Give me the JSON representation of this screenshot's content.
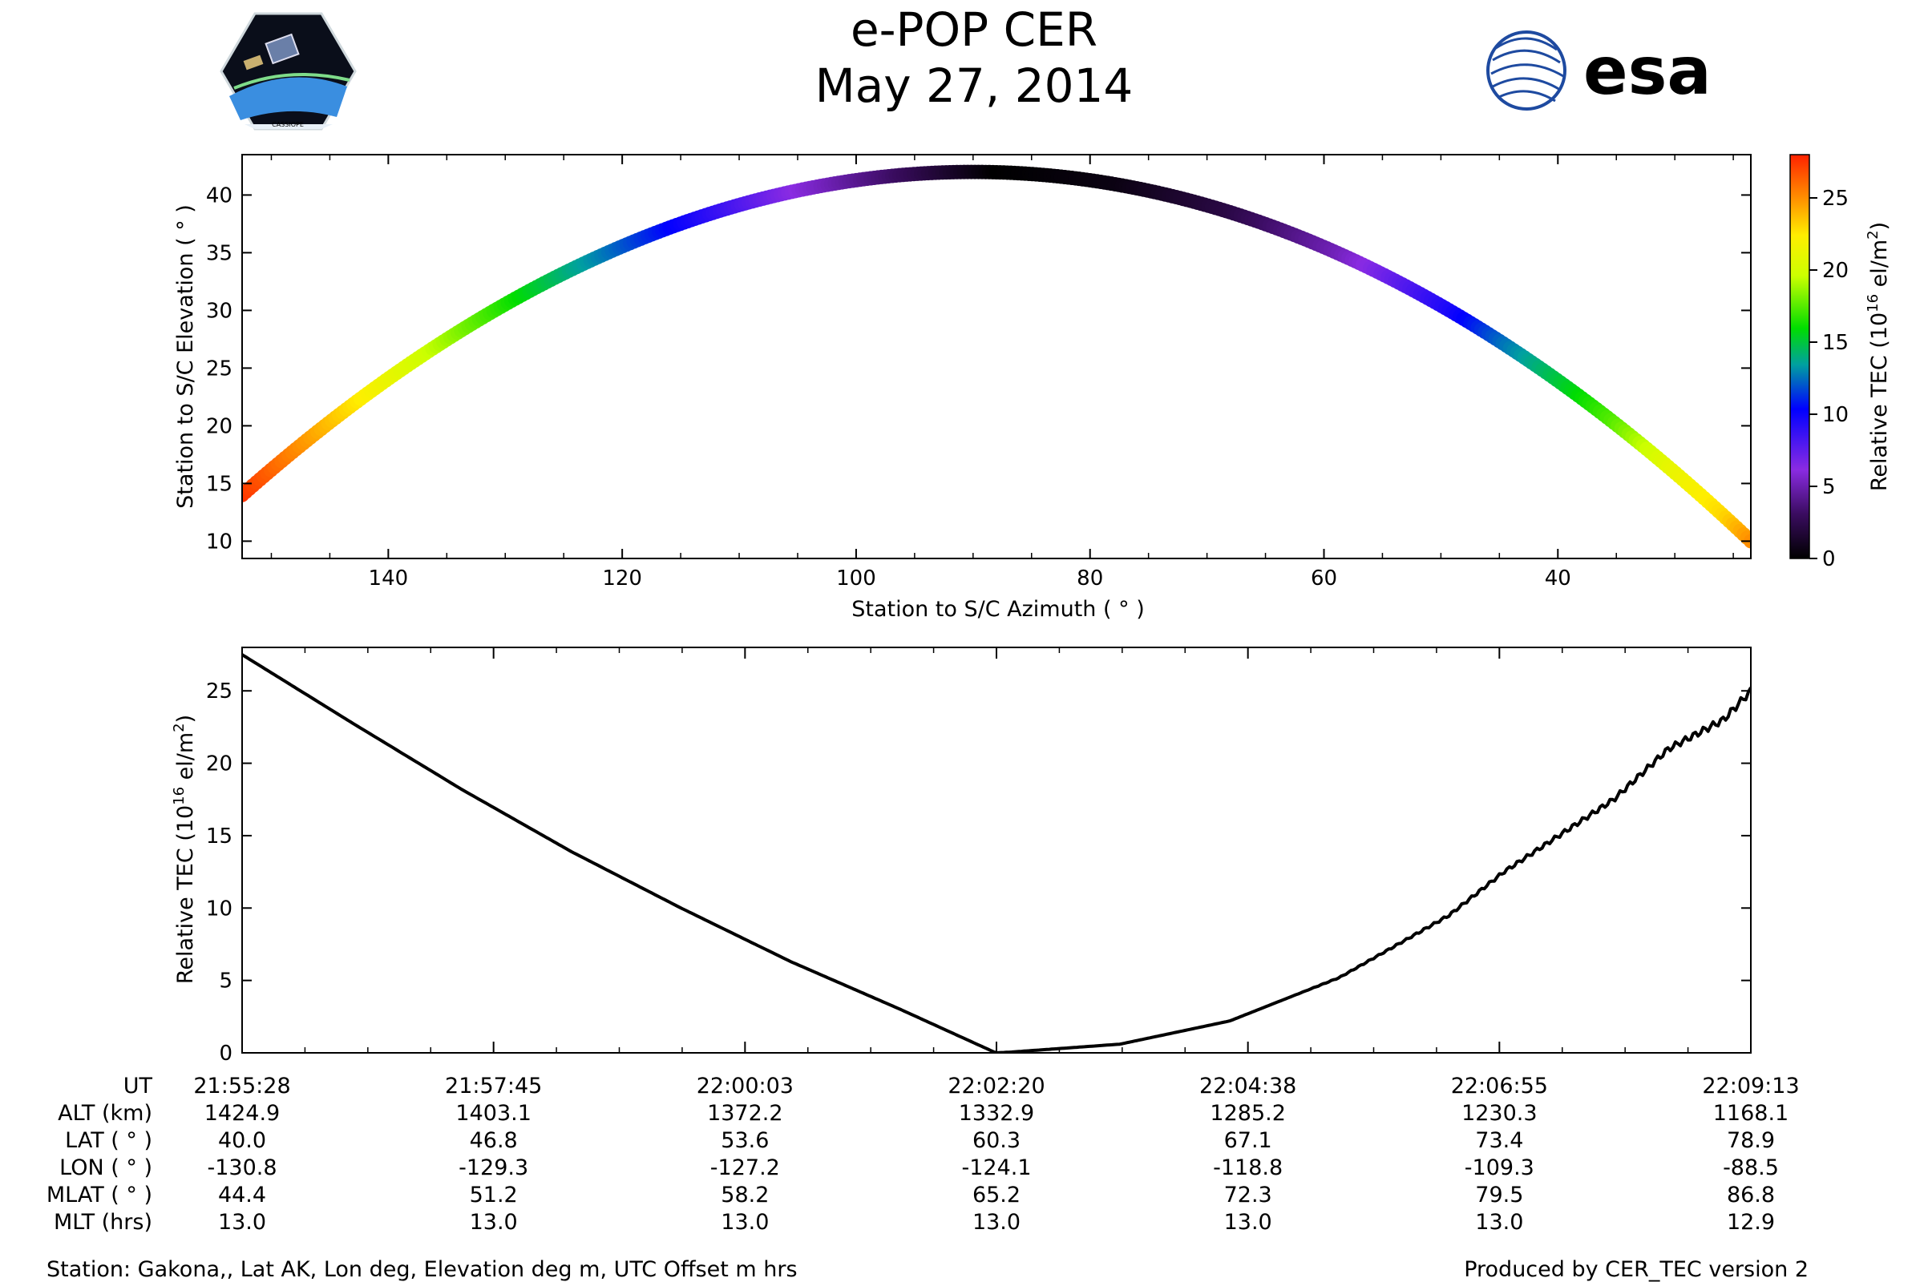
{
  "header": {
    "title": "e-POP CER",
    "date": "May 27, 2014",
    "left_logo_text": "CASSIOPE",
    "right_logo_text": "esa"
  },
  "chart_data": [
    {
      "type": "scatter",
      "name": "azimuth-elevation track",
      "xlabel": "Station to S/C Azimuth ( ° )",
      "ylabel": "Station to S/C Elevation ( ° )",
      "xlim": [
        152.5,
        23.5
      ],
      "ylim": [
        8.5,
        43.5
      ],
      "xticks": [
        140,
        120,
        100,
        80,
        60,
        40
      ],
      "yticks": [
        10,
        15,
        20,
        25,
        30,
        35,
        40
      ],
      "track": {
        "azimuth_start": 152.5,
        "azimuth_peak": 90,
        "azimuth_end": 23.5,
        "elevation_start": 14,
        "elevation_peak": 42,
        "elevation_end": 10
      },
      "colorbar": {
        "label_main": "Relative TEC (10",
        "label_exp": "16",
        "label_unit": " el/m",
        "label_sq": "2",
        "label_close": ")",
        "range": [
          0,
          28
        ],
        "ticks": [
          0,
          5,
          10,
          15,
          20,
          25
        ],
        "colormap": [
          "#000000",
          "#3a0c60",
          "#8a2be2",
          "#0000ff",
          "#00a0a0",
          "#00dd00",
          "#ccff00",
          "#ffee00",
          "#ff8800",
          "#ff2200"
        ]
      }
    },
    {
      "type": "line",
      "name": "relative TEC vs time",
      "xlabel": "UT",
      "ylabel_main": "Relative TEC (10",
      "ylabel_exp": "16",
      "ylabel_unit": " el/m",
      "ylabel_sq": "2",
      "ylabel_close": ")",
      "ylim": [
        0,
        28
      ],
      "yticks": [
        0,
        5,
        10,
        15,
        20,
        25
      ],
      "x_minutes": [
        0,
        1,
        2,
        3,
        4,
        5,
        6,
        6.87,
        7,
        8,
        9,
        10,
        11,
        11.5,
        12,
        12.5,
        13,
        13.5,
        13.75
      ],
      "values": [
        27.5,
        22.8,
        18.2,
        13.9,
        10.0,
        6.3,
        3.0,
        0.0,
        0.05,
        0.6,
        2.2,
        5.2,
        9.5,
        12.5,
        15.0,
        17.5,
        21.0,
        23.0,
        25.0
      ],
      "x_max_minutes": 13.75,
      "color": "#000000"
    }
  ],
  "ephemeris": {
    "row_labels": [
      "UT",
      "ALT (km)",
      "LAT ( ° )",
      "LON ( ° )",
      "MLAT ( ° )",
      "MLT (hrs)"
    ],
    "columns": [
      [
        "21:55:28",
        "1424.9",
        "40.0",
        "-130.8",
        "44.4",
        "13.0"
      ],
      [
        "21:57:45",
        "1403.1",
        "46.8",
        "-129.3",
        "51.2",
        "13.0"
      ],
      [
        "22:00:03",
        "1372.2",
        "53.6",
        "-127.2",
        "58.2",
        "13.0"
      ],
      [
        "22:02:20",
        "1332.9",
        "60.3",
        "-124.1",
        "65.2",
        "13.0"
      ],
      [
        "22:04:38",
        "1285.2",
        "67.1",
        "-118.8",
        "72.3",
        "13.0"
      ],
      [
        "22:06:55",
        "1230.3",
        "73.4",
        "-109.3",
        "79.5",
        "13.0"
      ],
      [
        "22:09:13",
        "1168.1",
        "78.9",
        "-88.5",
        "86.8",
        "12.9"
      ]
    ]
  },
  "footer": {
    "station": "Station: Gakona,, Lat AK, Lon deg, Elevation deg m, UTC Offset m hrs",
    "produced_by": "Produced by CER_TEC version 2"
  }
}
